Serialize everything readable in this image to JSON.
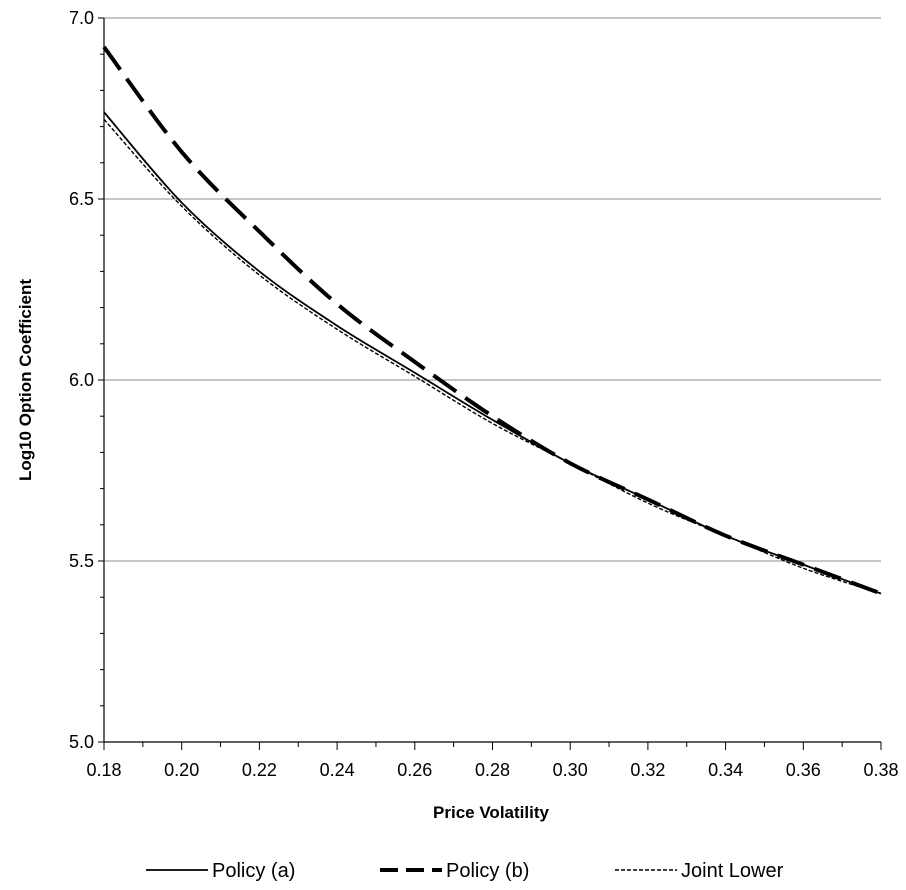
{
  "chart_data": {
    "type": "line",
    "xlabel": "Price Volatility",
    "ylabel": "Log10 Option Coefficient",
    "xlim": [
      0.18,
      0.38
    ],
    "ylim": [
      5.0,
      7.0
    ],
    "x_ticks": [
      "0.18",
      "0.20",
      "0.22",
      "0.24",
      "0.26",
      "0.28",
      "0.30",
      "0.32",
      "0.34",
      "0.36",
      "0.38"
    ],
    "y_ticks": [
      "5.0",
      "5.5",
      "6.0",
      "6.5",
      "7.0"
    ],
    "grid": "horizontal",
    "legend_position": "bottom",
    "x": [
      0.18,
      0.2,
      0.22,
      0.24,
      0.26,
      0.28,
      0.3,
      0.32,
      0.34,
      0.36,
      0.38
    ],
    "series": [
      {
        "name": "Policy (a)",
        "style": "solid",
        "color": "#000000",
        "values": [
          6.74,
          6.49,
          6.3,
          6.15,
          6.02,
          5.89,
          5.77,
          5.67,
          5.57,
          5.49,
          5.41
        ]
      },
      {
        "name": "Policy (b)",
        "style": "long-dash",
        "color": "#000000",
        "values": [
          6.92,
          6.63,
          6.41,
          6.21,
          6.05,
          5.9,
          5.77,
          5.67,
          5.57,
          5.49,
          5.41
        ]
      },
      {
        "name": "Joint Lower",
        "style": "short-dash",
        "color": "#000000",
        "values": [
          6.72,
          6.48,
          6.29,
          6.14,
          6.01,
          5.88,
          5.77,
          5.66,
          5.57,
          5.48,
          5.41
        ]
      }
    ]
  }
}
